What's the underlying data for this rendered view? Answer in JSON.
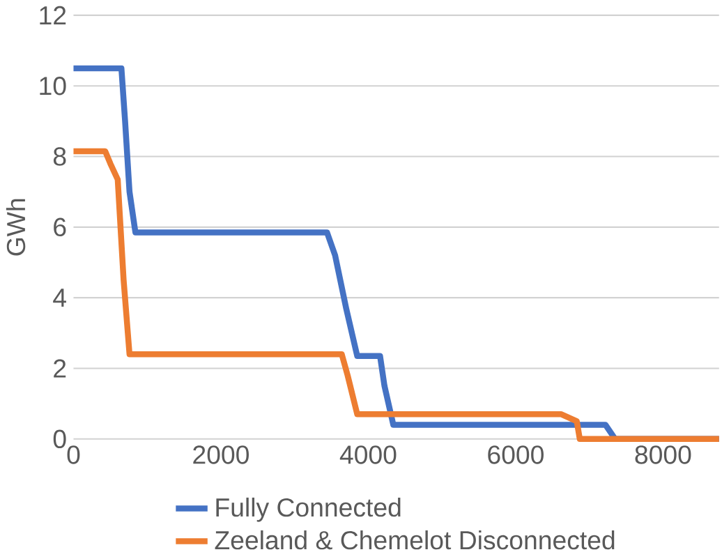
{
  "chart_data": {
    "type": "line",
    "ylabel": "GWh",
    "xlim": [
      0,
      8760
    ],
    "xticks": [
      0,
      2000,
      4000,
      6000,
      8000
    ],
    "ylim": [
      0,
      12
    ],
    "yticks": [
      0,
      2,
      4,
      6,
      8,
      10,
      12
    ],
    "grid": "y",
    "legend": "bottom",
    "line_style": "solid",
    "marker": "none",
    "series": [
      {
        "name": "Fully Connected",
        "color": "#4472c4",
        "x": [
          0,
          650,
          700,
          760,
          840,
          3440,
          3550,
          3700,
          3850,
          4160,
          4220,
          4340,
          7220,
          7350,
          8760
        ],
        "values": [
          10.5,
          10.5,
          9.0,
          7.0,
          5.85,
          5.85,
          5.2,
          3.7,
          2.35,
          2.35,
          1.5,
          0.4,
          0.4,
          0,
          0
        ]
      },
      {
        "name": "Zeeland & Chemelot Disconnected",
        "color": "#ed7d31",
        "x": [
          0,
          430,
          500,
          600,
          680,
          760,
          3640,
          3720,
          3850,
          6620,
          6830,
          6870,
          8760
        ],
        "values": [
          8.15,
          8.15,
          7.8,
          7.35,
          4.5,
          2.4,
          2.4,
          1.8,
          0.7,
          0.7,
          0.5,
          0,
          0
        ]
      }
    ]
  }
}
